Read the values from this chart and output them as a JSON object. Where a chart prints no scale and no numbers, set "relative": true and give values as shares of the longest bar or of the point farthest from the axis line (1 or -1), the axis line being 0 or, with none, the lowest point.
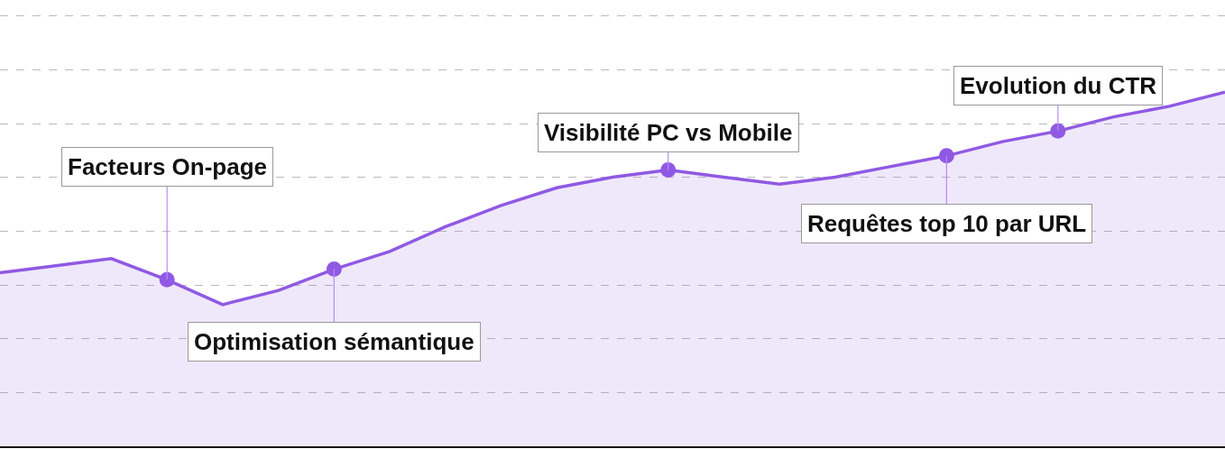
{
  "chart_data": {
    "type": "area",
    "relative": true,
    "grid": "y",
    "line_style": "solid",
    "legend": false,
    "tick_labels": false,
    "categories": [
      null,
      null,
      null,
      null,
      null,
      null,
      null,
      null,
      null,
      null,
      null,
      null,
      null,
      null,
      null,
      null,
      null,
      null,
      null,
      null,
      null,
      null,
      null
    ],
    "series": [
      {
        "color": "#9059e3",
        "values": [
          0.49,
          0.51,
          0.53,
          0.47,
          0.4,
          0.44,
          0.5,
          0.55,
          0.62,
          0.68,
          0.73,
          0.76,
          0.78,
          0.76,
          0.74,
          0.76,
          0.79,
          0.82,
          0.86,
          0.89,
          0.93,
          0.96,
          1.0
        ]
      }
    ],
    "annotations": [
      {
        "text": "Facteurs On-page",
        "y": 0.47
      },
      {
        "text": "Optimisation sémantique",
        "y": 0.5
      },
      {
        "text": "Visibilité PC vs Mobile",
        "y": 0.78
      },
      {
        "text": "Requêtes top 10 par URL",
        "y": 0.82
      },
      {
        "text": "Evolution du CTR",
        "y": 0.89
      }
    ]
  }
}
